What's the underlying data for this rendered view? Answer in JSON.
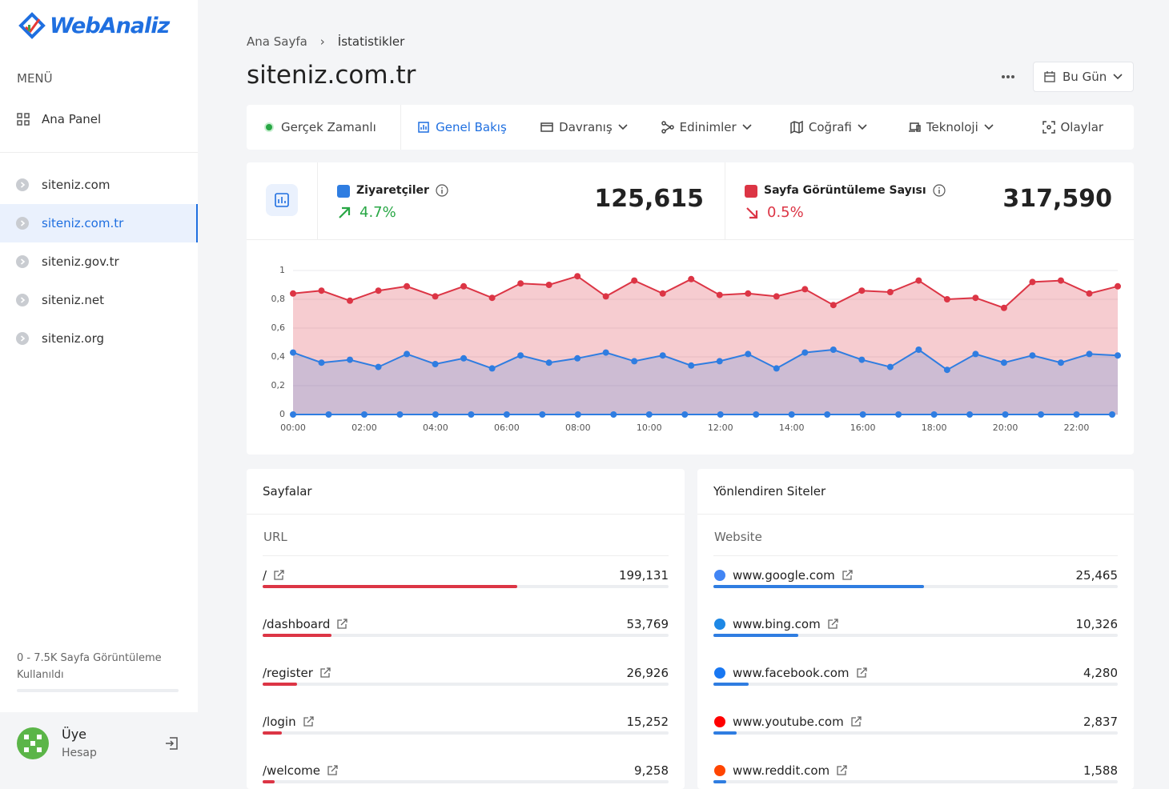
{
  "sidebar": {
    "logo": "WebAnaliz",
    "menu_label": "MENÜ",
    "nav": [
      "Ana Panel"
    ],
    "sites": [
      "siteniz.com",
      "siteniz.com.tr",
      "siteniz.gov.tr",
      "siteniz.net",
      "siteniz.org"
    ],
    "active_site": 1,
    "usage": "0 - 7.5K Sayfa Görüntüleme Kullanıldı",
    "user": {
      "name": "Üye",
      "role": "Hesap"
    }
  },
  "header": {
    "breadcrumb": [
      "Ana Sayfa",
      "İstatistikler"
    ],
    "title": "siteniz.com.tr",
    "date_button": "Bu Gün"
  },
  "tabs": [
    "Gerçek Zamanlı",
    "Genel Bakış",
    "Davranış",
    "Edinimler",
    "Coğrafi",
    "Teknoloji",
    "Olaylar"
  ],
  "active_tab": 1,
  "stats": [
    {
      "label": "Ziyaretçiler",
      "change": "4.7%",
      "direction": "up",
      "value": 125615,
      "value_label": "125,615",
      "color": "#2f7de1"
    },
    {
      "label": "Sayfa Görüntüleme Sayısı",
      "change": "0.5%",
      "direction": "down",
      "value": 317590,
      "value_label": "317,590",
      "color": "#dc3545"
    }
  ],
  "chart_data": {
    "type": "area",
    "xlim": [
      0,
      23
    ],
    "xticks": [
      {
        "value": 0,
        "label": "00:00"
      },
      {
        "value": 2,
        "label": "02:00"
      },
      {
        "value": 4,
        "label": "04:00"
      },
      {
        "value": 6,
        "label": "06:00"
      },
      {
        "value": 8,
        "label": "08:00"
      },
      {
        "value": 10,
        "label": "10:00"
      },
      {
        "value": 12,
        "label": "12:00"
      },
      {
        "value": 14,
        "label": "14:00"
      },
      {
        "value": 16,
        "label": "16:00"
      },
      {
        "value": 18,
        "label": "18:00"
      },
      {
        "value": 20,
        "label": "20:00"
      },
      {
        "value": 22,
        "label": "22:00"
      }
    ],
    "ylim": [
      0,
      1
    ],
    "yticks": [
      0,
      {
        "value": 0.2,
        "label": "0,2"
      },
      {
        "value": 0.4,
        "label": "0,4"
      },
      {
        "value": 0.6,
        "label": "0,6"
      },
      {
        "value": 0.8,
        "label": "0,8"
      },
      1
    ],
    "grid": true,
    "series": [
      {
        "color": "#dc3545",
        "values": [
          0.84,
          0.86,
          0.79,
          0.86,
          0.89,
          0.82,
          0.89,
          0.81,
          0.91,
          0.9,
          0.96,
          0.82,
          0.93,
          0.84,
          0.94,
          0.83,
          0.84,
          0.82,
          0.87,
          0.76,
          0.86,
          0.85,
          0.93,
          0.8,
          0.81,
          0.74,
          0.92,
          0.93,
          0.84,
          0.89
        ]
      },
      {
        "color": "#2f7de1",
        "values": [
          0.43,
          0.36,
          0.38,
          0.33,
          0.42,
          0.35,
          0.39,
          0.32,
          0.41,
          0.36,
          0.39,
          0.43,
          0.37,
          0.41,
          0.34,
          0.37,
          0.42,
          0.32,
          0.43,
          0.45,
          0.38,
          0.33,
          0.45,
          0.31,
          0.42,
          0.36,
          0.41,
          0.36,
          0.42,
          0.41
        ]
      }
    ],
    "baseline": {
      "color": "#2f7de1",
      "x": [
        0,
        1,
        2,
        3,
        4,
        5,
        6,
        7,
        8,
        9,
        10,
        11,
        12,
        13,
        14,
        15,
        16,
        17,
        18,
        19,
        20,
        21,
        22,
        23
      ],
      "values": [
        0,
        0,
        0,
        0,
        0,
        0,
        0,
        0,
        0,
        0,
        0,
        0,
        0,
        0,
        0,
        0,
        0,
        0,
        0,
        0,
        0,
        0,
        0,
        0
      ]
    }
  },
  "pages": {
    "title": "Sayfalar",
    "column": "URL",
    "color": "#dc3545",
    "rows": [
      {
        "label": "/",
        "value": 199131,
        "value_label": "199,131"
      },
      {
        "label": "/dashboard",
        "value": 53769,
        "value_label": "53,769"
      },
      {
        "label": "/register",
        "value": 26926,
        "value_label": "26,926"
      },
      {
        "label": "/login",
        "value": 15252,
        "value_label": "15,252"
      },
      {
        "label": "/welcome",
        "value": 9258,
        "value_label": "9,258"
      }
    ]
  },
  "referrers": {
    "title": "Yönlendiren Siteler",
    "column": "Website",
    "color": "#2f7de1",
    "rows": [
      {
        "label": "www.google.com",
        "value": 25465,
        "value_label": "25,465",
        "icon": "#4285f4"
      },
      {
        "label": "www.bing.com",
        "value": 10326,
        "value_label": "10,326",
        "icon": "#1e88e5"
      },
      {
        "label": "www.facebook.com",
        "value": 4280,
        "value_label": "4,280",
        "icon": "#1877f2"
      },
      {
        "label": "www.youtube.com",
        "value": 2837,
        "value_label": "2,837",
        "icon": "#ff0000"
      },
      {
        "label": "www.reddit.com",
        "value": 1588,
        "value_label": "1,588",
        "icon": "#ff4500"
      }
    ]
  }
}
